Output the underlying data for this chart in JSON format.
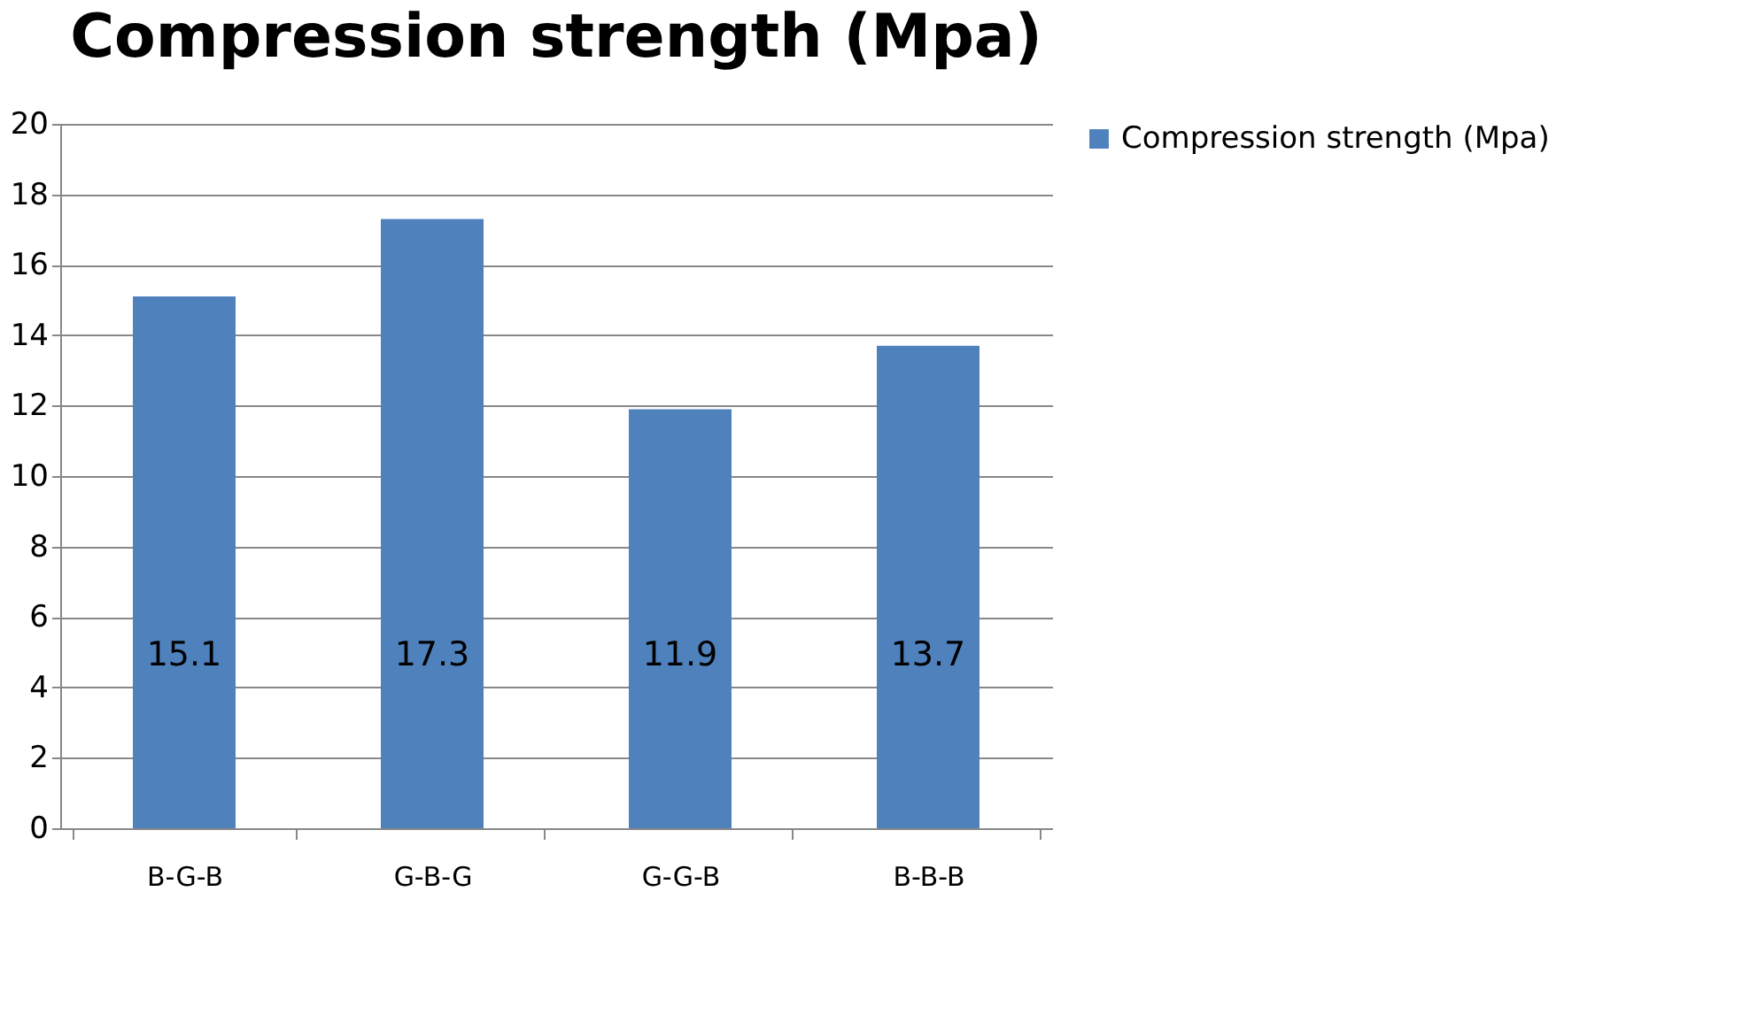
{
  "chart_data": {
    "type": "bar",
    "title": "Compression strength (Mpa)",
    "categories": [
      "B-G-B",
      "G-B-G",
      "G-G-B",
      "B-B-B"
    ],
    "series": [
      {
        "name": "Compression strength (Mpa)",
        "color": "#4f81bd",
        "values": [
          15.1,
          17.3,
          11.9,
          13.7
        ]
      }
    ],
    "ylim": [
      0,
      20
    ],
    "yticks": [
      0,
      2,
      4,
      6,
      8,
      10,
      12,
      14,
      16,
      18,
      20
    ],
    "grid": "y",
    "legend": "right",
    "data_labels": true
  }
}
